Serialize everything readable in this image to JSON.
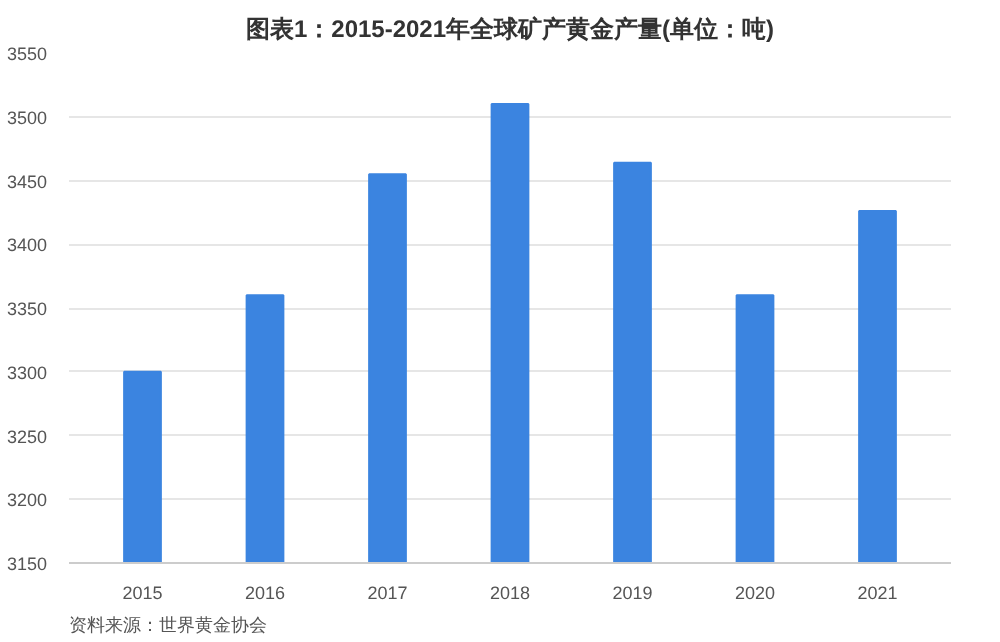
{
  "chart_data": {
    "type": "bar",
    "title": "图表1：2015-2021年全球矿产黄金产量(单位：吨)",
    "categories": [
      "2015",
      "2016",
      "2017",
      "2018",
      "2019",
      "2020",
      "2021"
    ],
    "values": [
      3300,
      3360,
      3455,
      3510,
      3464,
      3360,
      3426
    ],
    "color": "#3b84e0",
    "ylim": [
      3150,
      3550
    ],
    "yticks": [
      3150,
      3200,
      3250,
      3300,
      3350,
      3400,
      3450,
      3500,
      3550
    ],
    "grid": "y",
    "annotations": [
      "资料来源：世界黄金协会"
    ]
  }
}
